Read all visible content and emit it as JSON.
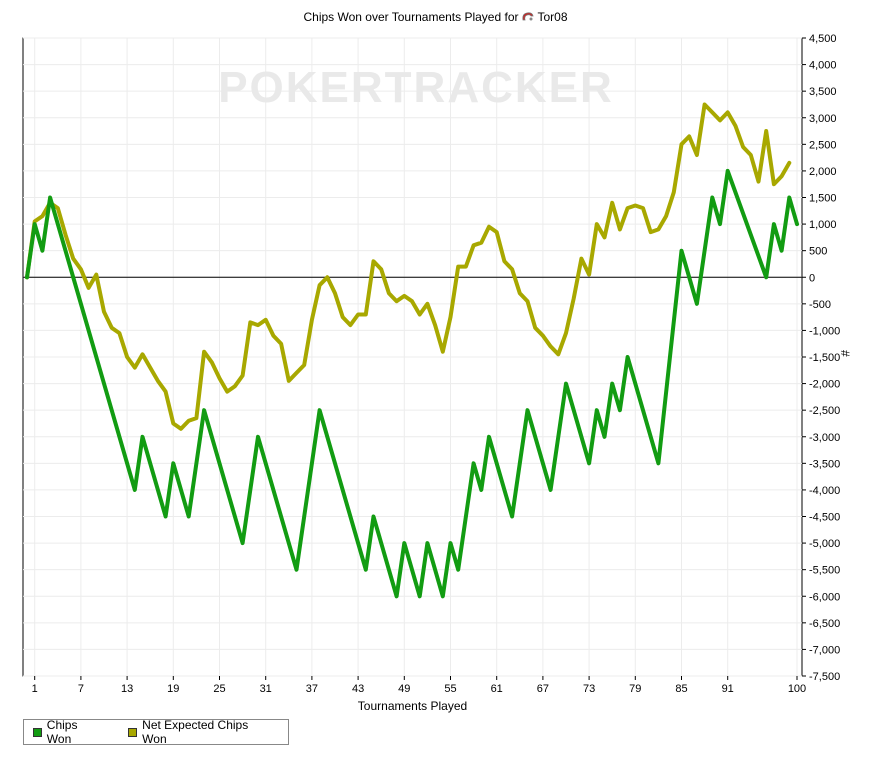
{
  "chart_data": {
    "type": "line",
    "title": "Chips Won over Tournaments Played for",
    "player_name": "Tor08",
    "player_icon": "player-mask-icon",
    "watermark": "POKERTRACKER",
    "xlabel": "Tournaments Played",
    "ylabel": "#",
    "xlim": [
      0,
      100
    ],
    "ylim": [
      -7500,
      4500
    ],
    "x_ticks": [
      1,
      7,
      13,
      19,
      25,
      31,
      37,
      43,
      49,
      55,
      61,
      67,
      73,
      79,
      85,
      91,
      100
    ],
    "y_ticks": [
      4500,
      4000,
      3500,
      3000,
      2500,
      2000,
      1500,
      1000,
      500,
      0,
      -500,
      -1000,
      -1500,
      -2000,
      -2500,
      -3000,
      -3500,
      -4000,
      -4500,
      -5000,
      -5500,
      -6000,
      -6500,
      -7000,
      -7500
    ],
    "y_tick_labels": [
      "4,500",
      "4,000",
      "3,500",
      "3,000",
      "2,500",
      "2,000",
      "1,500",
      "1,000",
      "500",
      "0",
      "-500",
      "-1,000",
      "-1,500",
      "-2,000",
      "-2,500",
      "-3,000",
      "-3,500",
      "-4,000",
      "-4,500",
      "-5,000",
      "-5,500",
      "-6,000",
      "-6,500",
      "-7,000",
      "-7,500"
    ],
    "grid": true,
    "legend_position": "bottom-left",
    "series": [
      {
        "name": "Chips Won",
        "color": "#129c12",
        "points": [
          [
            0,
            0
          ],
          [
            1,
            1000
          ],
          [
            2,
            500
          ],
          [
            3,
            1500
          ],
          [
            14,
            -4000
          ],
          [
            15,
            -3000
          ],
          [
            18,
            -4500
          ],
          [
            19,
            -3500
          ],
          [
            21,
            -4500
          ],
          [
            23,
            -2500
          ],
          [
            28,
            -5000
          ],
          [
            30,
            -3000
          ],
          [
            35,
            -5500
          ],
          [
            38,
            -2500
          ],
          [
            44,
            -5500
          ],
          [
            45,
            -4500
          ],
          [
            48,
            -6000
          ],
          [
            49,
            -5000
          ],
          [
            51,
            -6000
          ],
          [
            52,
            -5000
          ],
          [
            54,
            -6000
          ],
          [
            55,
            -5000
          ],
          [
            56,
            -5500
          ],
          [
            58,
            -3500
          ],
          [
            59,
            -4000
          ],
          [
            60,
            -3000
          ],
          [
            63,
            -4500
          ],
          [
            65,
            -2500
          ],
          [
            68,
            -4000
          ],
          [
            70,
            -2000
          ],
          [
            73,
            -3500
          ],
          [
            74,
            -2500
          ],
          [
            75,
            -3000
          ],
          [
            76,
            -2000
          ],
          [
            77,
            -2500
          ],
          [
            78,
            -1500
          ],
          [
            82,
            -3500
          ],
          [
            85,
            500
          ],
          [
            87,
            -500
          ],
          [
            89,
            1500
          ],
          [
            90,
            1000
          ],
          [
            91,
            2000
          ],
          [
            96,
            0
          ],
          [
            97,
            1000
          ],
          [
            98,
            500
          ],
          [
            99,
            1500
          ],
          [
            100,
            1000
          ]
        ]
      },
      {
        "name": "Net Expected Chips Won",
        "color": "#a8a800",
        "points": [
          [
            0,
            0
          ],
          [
            1,
            1050
          ],
          [
            2,
            1150
          ],
          [
            3,
            1400
          ],
          [
            4,
            1300
          ],
          [
            5,
            800
          ],
          [
            6,
            350
          ],
          [
            7,
            150
          ],
          [
            8,
            -200
          ],
          [
            9,
            50
          ],
          [
            10,
            -650
          ],
          [
            11,
            -950
          ],
          [
            12,
            -1050
          ],
          [
            13,
            -1500
          ],
          [
            14,
            -1700
          ],
          [
            15,
            -1450
          ],
          [
            16,
            -1700
          ],
          [
            17,
            -1950
          ],
          [
            18,
            -2150
          ],
          [
            19,
            -2750
          ],
          [
            20,
            -2850
          ],
          [
            21,
            -2700
          ],
          [
            22,
            -2650
          ],
          [
            23,
            -1400
          ],
          [
            24,
            -1600
          ],
          [
            25,
            -1900
          ],
          [
            26,
            -2150
          ],
          [
            27,
            -2050
          ],
          [
            28,
            -1850
          ],
          [
            29,
            -850
          ],
          [
            30,
            -900
          ],
          [
            31,
            -800
          ],
          [
            32,
            -1100
          ],
          [
            33,
            -1250
          ],
          [
            34,
            -1950
          ],
          [
            35,
            -1800
          ],
          [
            36,
            -1650
          ],
          [
            37,
            -800
          ],
          [
            38,
            -150
          ],
          [
            39,
            0
          ],
          [
            40,
            -300
          ],
          [
            41,
            -750
          ],
          [
            42,
            -900
          ],
          [
            43,
            -700
          ],
          [
            44,
            -700
          ],
          [
            45,
            300
          ],
          [
            46,
            150
          ],
          [
            47,
            -300
          ],
          [
            48,
            -450
          ],
          [
            49,
            -350
          ],
          [
            50,
            -450
          ],
          [
            51,
            -700
          ],
          [
            52,
            -500
          ],
          [
            53,
            -900
          ],
          [
            54,
            -1400
          ],
          [
            55,
            -750
          ],
          [
            56,
            200
          ],
          [
            57,
            200
          ],
          [
            58,
            600
          ],
          [
            59,
            650
          ],
          [
            60,
            950
          ],
          [
            61,
            850
          ],
          [
            62,
            300
          ],
          [
            63,
            150
          ],
          [
            64,
            -300
          ],
          [
            65,
            -450
          ],
          [
            66,
            -950
          ],
          [
            67,
            -1100
          ],
          [
            68,
            -1300
          ],
          [
            69,
            -1450
          ],
          [
            70,
            -1050
          ],
          [
            71,
            -400
          ],
          [
            72,
            350
          ],
          [
            73,
            50
          ],
          [
            74,
            1000
          ],
          [
            75,
            750
          ],
          [
            76,
            1400
          ],
          [
            77,
            900
          ],
          [
            78,
            1300
          ],
          [
            79,
            1350
          ],
          [
            80,
            1300
          ],
          [
            81,
            850
          ],
          [
            82,
            900
          ],
          [
            83,
            1150
          ],
          [
            84,
            1600
          ],
          [
            85,
            2500
          ],
          [
            86,
            2650
          ],
          [
            87,
            2300
          ],
          [
            88,
            3250
          ],
          [
            89,
            3100
          ],
          [
            90,
            2950
          ],
          [
            91,
            3100
          ],
          [
            92,
            2850
          ],
          [
            93,
            2450
          ],
          [
            94,
            2300
          ],
          [
            95,
            1800
          ],
          [
            96,
            2750
          ],
          [
            97,
            1750
          ],
          [
            98,
            1900
          ],
          [
            99,
            2150
          ]
        ]
      }
    ]
  }
}
